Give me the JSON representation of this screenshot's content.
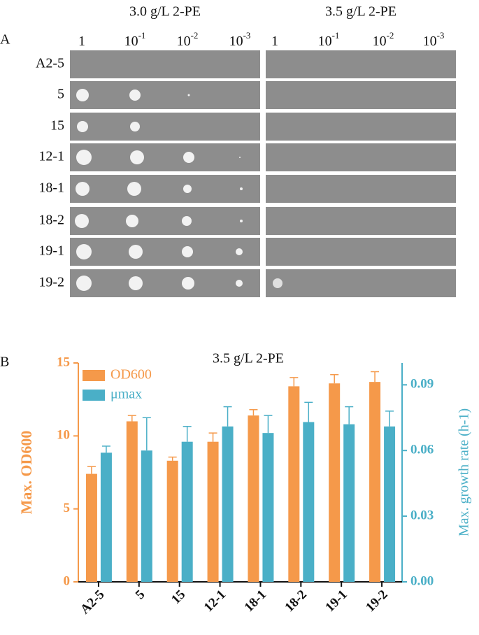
{
  "panel_a": {
    "label": "A",
    "conditions": [
      "3.0 g/L 2-PE",
      "3.5 g/L 2-PE"
    ],
    "dilutions": [
      {
        "text": "1"
      },
      {
        "text": "10",
        "sup": "-1"
      },
      {
        "text": "10",
        "sup": "-2"
      },
      {
        "text": "10",
        "sup": "-3"
      }
    ],
    "strains": [
      "A2-5",
      "5",
      "15",
      "12-1",
      "18-1",
      "18-2",
      "19-1",
      "19-2"
    ]
  },
  "chart_data": {
    "type": "bar",
    "label": "B",
    "title": "3.5 g/L 2-PE",
    "y_label": "Max. OD600",
    "y2_label": "Max. growth rate (h-1)",
    "categories": [
      "A2-5",
      "5",
      "15",
      "12-1",
      "18-1",
      "18-2",
      "19-1",
      "19-2"
    ],
    "series": [
      {
        "name": "OD600",
        "color": "#f5994a",
        "values": [
          7.4,
          11.0,
          8.3,
          9.6,
          11.4,
          13.4,
          13.6,
          13.7
        ],
        "errors": [
          0.5,
          0.4,
          0.25,
          0.6,
          0.4,
          0.6,
          0.6,
          0.7
        ]
      },
      {
        "name": "μmax",
        "color": "#4aafc7",
        "axis": "y2",
        "values": [
          0.059,
          0.06,
          0.064,
          0.071,
          0.068,
          0.073,
          0.072,
          0.071
        ],
        "errors": [
          0.003,
          0.015,
          0.007,
          0.009,
          0.008,
          0.009,
          0.008,
          0.007
        ]
      }
    ],
    "ylim": [
      0,
      15
    ],
    "yticks": [
      0,
      5,
      10,
      15
    ],
    "y2lim": [
      0,
      0.1
    ],
    "y2ticks": [
      {
        "value": 0,
        "label": "0.00"
      },
      {
        "value": 0.03,
        "label": "0.03"
      },
      {
        "value": 0.06,
        "label": "0.06"
      },
      {
        "value": 0.09,
        "label": "0.09"
      }
    ],
    "legend": "top-left"
  }
}
